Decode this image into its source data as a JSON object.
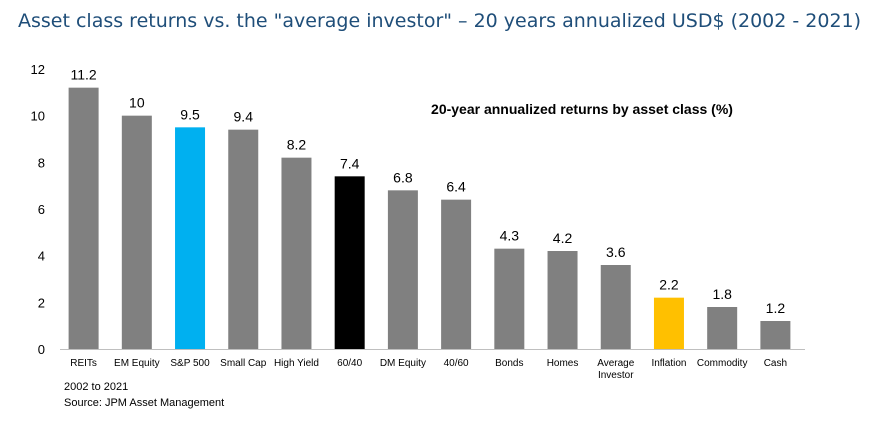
{
  "header": {
    "title": "Asset class returns vs. the \"average investor\" – 20 years annualized USD$ (2002 - 2021)"
  },
  "chart_data": {
    "type": "bar",
    "annotation": "20-year annualized returns by asset class (%)",
    "categories": [
      "REITs",
      "EM Equity",
      "S&P 500",
      "Small Cap",
      "High Yield",
      "60/40",
      "DM Equity",
      "40/60",
      "Bonds",
      "Homes",
      "Average Investor",
      "Inflation",
      "Commodity",
      "Cash"
    ],
    "category_lines": [
      [
        "REITs"
      ],
      [
        "EM Equity"
      ],
      [
        "S&P 500"
      ],
      [
        "Small Cap"
      ],
      [
        "High Yield"
      ],
      [
        "60/40"
      ],
      [
        "DM Equity"
      ],
      [
        "40/60"
      ],
      [
        "Bonds"
      ],
      [
        "Homes"
      ],
      [
        "Average",
        "Investor"
      ],
      [
        "Inflation"
      ],
      [
        "Commodity"
      ],
      [
        "Cash"
      ]
    ],
    "values": [
      11.2,
      10,
      9.5,
      9.4,
      8.2,
      7.4,
      6.8,
      6.4,
      4.3,
      4.2,
      3.6,
      2.2,
      1.8,
      1.2
    ],
    "value_labels": [
      "11.2",
      "10",
      "9.5",
      "9.4",
      "8.2",
      "7.4",
      "6.8",
      "6.4",
      "4.3",
      "4.2",
      "3.6",
      "2.2",
      "1.8",
      "1.2"
    ],
    "colors": [
      "#808080",
      "#808080",
      "#00b0f0",
      "#808080",
      "#808080",
      "#000000",
      "#808080",
      "#808080",
      "#808080",
      "#808080",
      "#808080",
      "#ffc000",
      "#808080",
      "#808080"
    ],
    "ylim": [
      0,
      12
    ],
    "yticks": [
      "0",
      "2",
      "4",
      "6",
      "8",
      "10",
      "12"
    ],
    "xlabel": "",
    "ylabel": "",
    "grid": false
  },
  "footnotes": {
    "period": "2002 to 2021",
    "source": "Source: JPM Asset Management"
  }
}
